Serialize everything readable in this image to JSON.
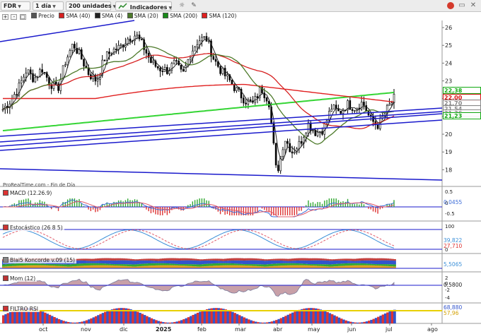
{
  "toolbar": {
    "symbol": "FDR",
    "timeframe": "1 día",
    "units": "200 unidades",
    "indicators": "Indicadores"
  },
  "legend": {
    "price": "Precio",
    "sma40": "SMA (40)",
    "sma4": "SMA (4)",
    "sma20": "SMA (20)",
    "sma200": "SMA (200)",
    "sma120": "SMA (120)"
  },
  "colors": {
    "price": "#000000",
    "sma40": "#d62020",
    "sma4": "#222222",
    "sma20": "#4d7a2a",
    "sma200": "#1a8a1a",
    "sma120": "#e02020",
    "trendline": "#1a1acc",
    "sma200_bright": "#34d534"
  },
  "source_label": "ProRealTime.com - Fin de Día",
  "price_badges": [
    {
      "value": "22,38",
      "color": "#11aa11"
    },
    {
      "value": "22,00",
      "color": "#d91010"
    },
    {
      "value": "21,70",
      "color": "#888888"
    },
    {
      "value": "21,54",
      "color": "#888888"
    },
    {
      "value": "21,36",
      "color": "#888888"
    },
    {
      "value": "21,23",
      "color": "#11aa11"
    }
  ],
  "chart_data": [
    {
      "type": "line",
      "title": "",
      "series_names_shown": [
        "Precio",
        "SMA (40)",
        "SMA (4)",
        "SMA (20)",
        "SMA (200)",
        "SMA (120)"
      ],
      "x_tick_labels": [
        "oct",
        "nov",
        "dic",
        "2025",
        "feb",
        "mar",
        "abr",
        "may",
        "jun",
        "jul",
        "ago"
      ],
      "y_tick_labels": [
        "26",
        "25",
        "24",
        "23",
        "22",
        "21",
        "20",
        "19",
        "18"
      ],
      "ylim": [
        17.3,
        26.4
      ],
      "grid": false,
      "close_approx": [
        21.4,
        21.9,
        22.6,
        23.6,
        23.1,
        23.7,
        22.9,
        22.5,
        24.1,
        25.1,
        24.3,
        23.4,
        23.0,
        24.3,
        24.7,
        24.9,
        25.4,
        25.6,
        24.9,
        24.0,
        23.7,
        23.6,
        24.0,
        23.3,
        24.6,
        25.3,
        25.4,
        24.2,
        23.5,
        23.0,
        22.4,
        21.9,
        21.7,
        22.6,
        21.9,
        17.7,
        19.8,
        19.0,
        19.5,
        20.6,
        20.1,
        20.3,
        21.5,
        21.2,
        21.7,
        21.5,
        21.8,
        20.8,
        20.5,
        21.3,
        22.0
      ]
    },
    {
      "type": "bar",
      "title": "MACD (12.26.9)",
      "y_tick_labels": [
        "0.5",
        "0",
        "-0.5"
      ],
      "badge": "0,0455"
    },
    {
      "type": "line",
      "title": "Estocástico (26 8 5)",
      "y_tick_labels": [
        "100",
        "0"
      ],
      "badges": [
        "39,822",
        "27,710"
      ]
    },
    {
      "type": "area",
      "title": "Blai5 Koncorde v.09 (15)",
      "badge": "5,5065"
    },
    {
      "type": "line",
      "title": "Mom (12)",
      "y_tick_labels": [
        "2",
        "0",
        "-2",
        "-4"
      ],
      "badge": "0,5800"
    },
    {
      "type": "area",
      "title": "FILTRO RSI",
      "badges": [
        "68,880",
        "57,96"
      ]
    }
  ]
}
